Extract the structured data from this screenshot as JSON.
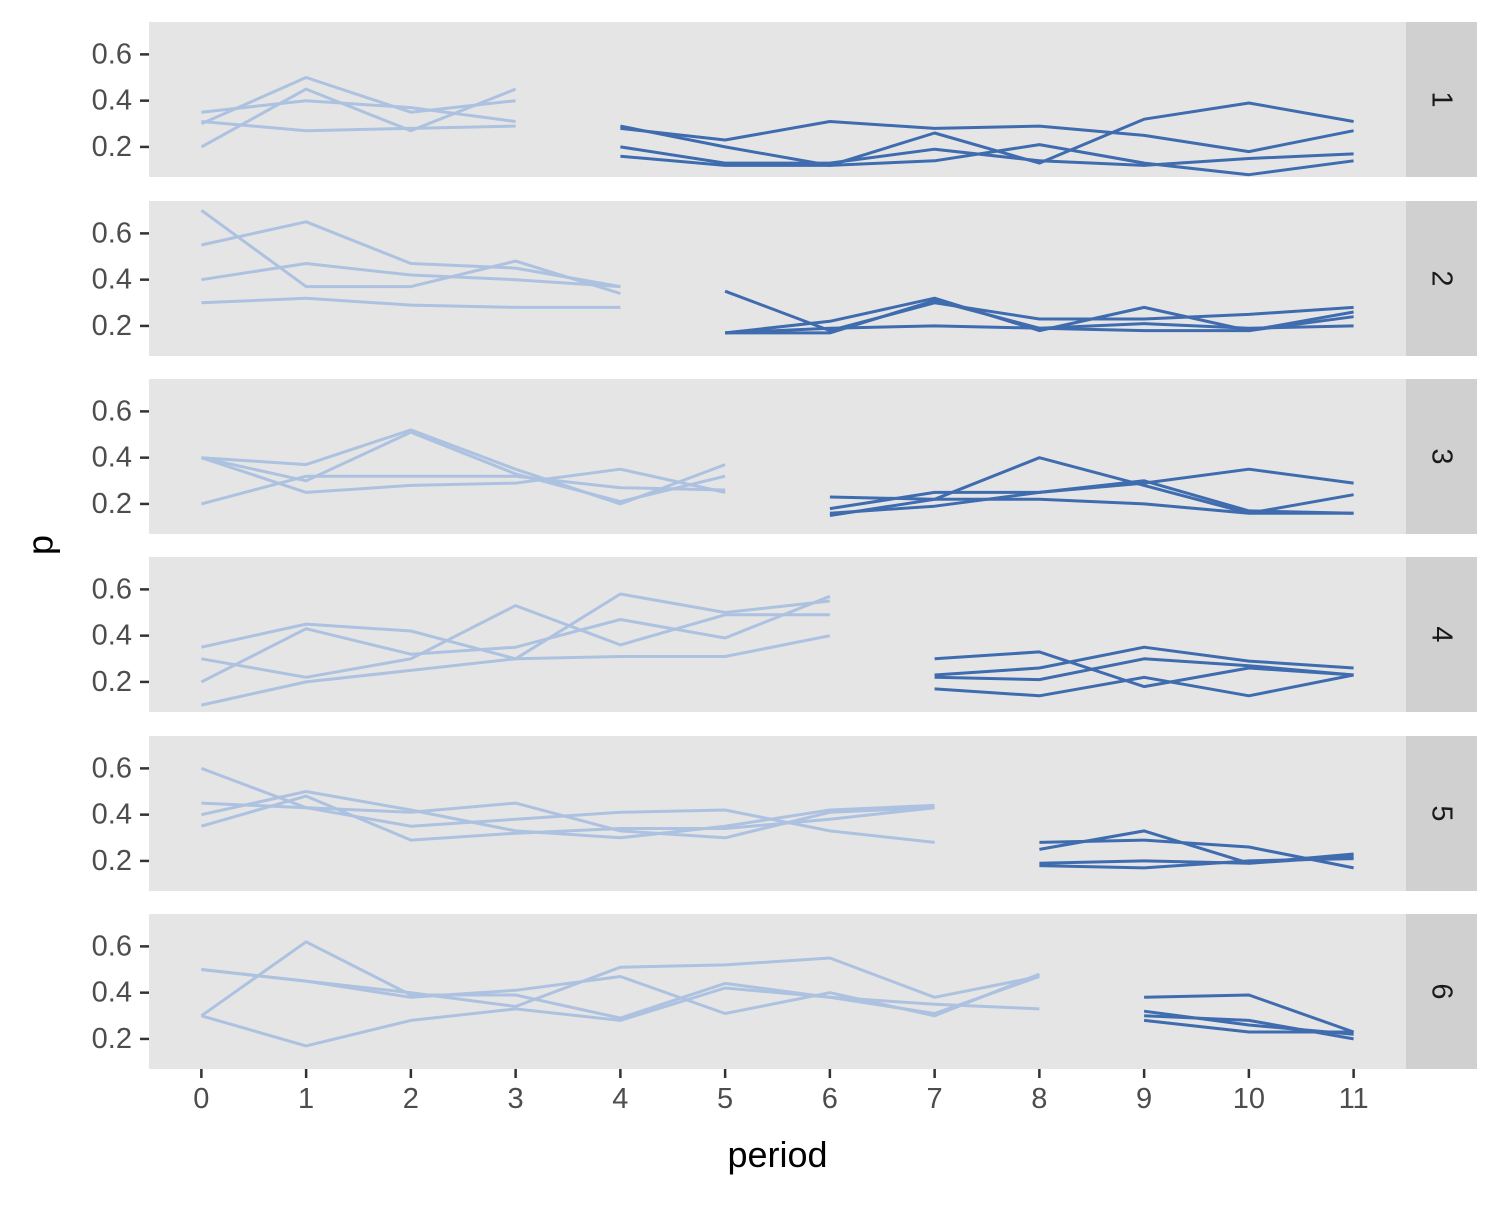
{
  "chart_data": {
    "type": "line",
    "xlabel": "period",
    "ylabel": "p",
    "x_ticks": [
      "0",
      "1",
      "2",
      "3",
      "4",
      "5",
      "6",
      "7",
      "8",
      "9",
      "10",
      "11"
    ],
    "y_ticks": [
      "0.2",
      "0.4",
      "0.6"
    ],
    "xlim": [
      -0.5,
      11.5
    ],
    "ylim": [
      0.07,
      0.74
    ],
    "grid": false,
    "colors": {
      "early": "#adc2e0",
      "late": "#3f6caf",
      "panel_bg": "#e5e5e5",
      "strip_bg": "#d0d0d0"
    },
    "facets": [
      {
        "label": "1",
        "early": [
          {
            "x": [
              0,
              1,
              2,
              3
            ],
            "y": [
              0.2,
              0.45,
              0.27,
              0.45
            ]
          },
          {
            "x": [
              0,
              1,
              2,
              3
            ],
            "y": [
              0.3,
              0.5,
              0.35,
              0.4
            ]
          },
          {
            "x": [
              0,
              1,
              2,
              3
            ],
            "y": [
              0.35,
              0.4,
              0.37,
              0.31
            ]
          },
          {
            "x": [
              0,
              1,
              2,
              3
            ],
            "y": [
              0.31,
              0.27,
              0.28,
              0.29
            ]
          }
        ],
        "late": [
          {
            "x": [
              4,
              5,
              6,
              7,
              8,
              9,
              10,
              11
            ],
            "y": [
              0.28,
              0.23,
              0.31,
              0.28,
              0.29,
              0.25,
              0.18,
              0.27
            ]
          },
          {
            "x": [
              4,
              5,
              6,
              7,
              8,
              9,
              10,
              11
            ],
            "y": [
              0.29,
              0.2,
              0.12,
              0.26,
              0.13,
              0.32,
              0.39,
              0.31
            ]
          },
          {
            "x": [
              4,
              5,
              6,
              7,
              8,
              9,
              10,
              11
            ],
            "y": [
              0.2,
              0.13,
              0.13,
              0.19,
              0.14,
              0.12,
              0.15,
              0.17
            ]
          },
          {
            "x": [
              4,
              5,
              6,
              7,
              8,
              9,
              10,
              11
            ],
            "y": [
              0.16,
              0.12,
              0.12,
              0.14,
              0.21,
              0.13,
              0.08,
              0.14
            ]
          }
        ]
      },
      {
        "label": "2",
        "early": [
          {
            "x": [
              0,
              1,
              2,
              3,
              4
            ],
            "y": [
              0.7,
              0.37,
              0.37,
              0.48,
              0.34
            ]
          },
          {
            "x": [
              0,
              1,
              2,
              3,
              4
            ],
            "y": [
              0.55,
              0.65,
              0.47,
              0.45,
              0.37
            ]
          },
          {
            "x": [
              0,
              1,
              2,
              3,
              4
            ],
            "y": [
              0.4,
              0.47,
              0.42,
              0.4,
              0.37
            ]
          },
          {
            "x": [
              0,
              1,
              2,
              3,
              4
            ],
            "y": [
              0.3,
              0.32,
              0.29,
              0.28,
              0.28
            ]
          }
        ],
        "late": [
          {
            "x": [
              5,
              6,
              7,
              8,
              9,
              10,
              11
            ],
            "y": [
              0.35,
              0.18,
              0.3,
              0.23,
              0.23,
              0.25,
              0.28
            ]
          },
          {
            "x": [
              5,
              6,
              7,
              8,
              9,
              10,
              11
            ],
            "y": [
              0.17,
              0.22,
              0.32,
              0.18,
              0.28,
              0.18,
              0.26
            ]
          },
          {
            "x": [
              5,
              6,
              7,
              8,
              9,
              10,
              11
            ],
            "y": [
              0.17,
              0.17,
              0.31,
              0.19,
              0.18,
              0.18,
              0.24
            ]
          },
          {
            "x": [
              5,
              6,
              7,
              8,
              9,
              10,
              11
            ],
            "y": [
              0.17,
              0.19,
              0.2,
              0.19,
              0.21,
              0.19,
              0.2
            ]
          }
        ]
      },
      {
        "label": "3",
        "early": [
          {
            "x": [
              0,
              1,
              2,
              3,
              4,
              5
            ],
            "y": [
              0.4,
              0.37,
              0.52,
              0.35,
              0.2,
              0.37
            ]
          },
          {
            "x": [
              0,
              1,
              2,
              3,
              4,
              5
            ],
            "y": [
              0.4,
              0.3,
              0.51,
              0.33,
              0.21,
              0.32
            ]
          },
          {
            "x": [
              0,
              1,
              2,
              3,
              4,
              5
            ],
            "y": [
              0.4,
              0.25,
              0.28,
              0.29,
              0.35,
              0.25
            ]
          },
          {
            "x": [
              0,
              1,
              2,
              3,
              4,
              5
            ],
            "y": [
              0.2,
              0.32,
              0.32,
              0.32,
              0.27,
              0.26
            ]
          }
        ],
        "late": [
          {
            "x": [
              6,
              7,
              8,
              9,
              10,
              11
            ],
            "y": [
              0.23,
              0.22,
              0.4,
              0.28,
              0.16,
              0.16
            ]
          },
          {
            "x": [
              6,
              7,
              8,
              9,
              10,
              11
            ],
            "y": [
              0.18,
              0.25,
              0.25,
              0.3,
              0.17,
              0.16
            ]
          },
          {
            "x": [
              6,
              7,
              8,
              9,
              10,
              11
            ],
            "y": [
              0.16,
              0.19,
              0.25,
              0.29,
              0.35,
              0.29
            ]
          },
          {
            "x": [
              6,
              7,
              8,
              9,
              10,
              11
            ],
            "y": [
              0.15,
              0.22,
              0.22,
              0.2,
              0.16,
              0.24
            ]
          }
        ]
      },
      {
        "label": "4",
        "early": [
          {
            "x": [
              0,
              1,
              2,
              3,
              4,
              5,
              6
            ],
            "y": [
              0.35,
              0.45,
              0.42,
              0.3,
              0.58,
              0.5,
              0.55
            ]
          },
          {
            "x": [
              0,
              1,
              2,
              3,
              4,
              5,
              6
            ],
            "y": [
              0.3,
              0.22,
              0.3,
              0.53,
              0.36,
              0.49,
              0.49
            ]
          },
          {
            "x": [
              0,
              1,
              2,
              3,
              4,
              5,
              6
            ],
            "y": [
              0.2,
              0.43,
              0.32,
              0.35,
              0.47,
              0.39,
              0.57
            ]
          },
          {
            "x": [
              0,
              1,
              2,
              3,
              4,
              5,
              6
            ],
            "y": [
              0.1,
              0.2,
              0.25,
              0.3,
              0.31,
              0.31,
              0.4
            ]
          }
        ],
        "late": [
          {
            "x": [
              7,
              8,
              9,
              10,
              11
            ],
            "y": [
              0.3,
              0.33,
              0.18,
              0.26,
              0.23
            ]
          },
          {
            "x": [
              7,
              8,
              9,
              10,
              11
            ],
            "y": [
              0.23,
              0.26,
              0.35,
              0.29,
              0.26
            ]
          },
          {
            "x": [
              7,
              8,
              9,
              10,
              11
            ],
            "y": [
              0.22,
              0.21,
              0.3,
              0.27,
              0.23
            ]
          },
          {
            "x": [
              7,
              8,
              9,
              10,
              11
            ],
            "y": [
              0.17,
              0.14,
              0.22,
              0.14,
              0.23
            ]
          }
        ]
      },
      {
        "label": "5",
        "early": [
          {
            "x": [
              0,
              1,
              2,
              3,
              4,
              5,
              6,
              7
            ],
            "y": [
              0.6,
              0.43,
              0.41,
              0.45,
              0.33,
              0.3,
              0.41,
              0.43
            ]
          },
          {
            "x": [
              0,
              1,
              2,
              3,
              4,
              5,
              6,
              7
            ],
            "y": [
              0.45,
              0.43,
              0.35,
              0.38,
              0.41,
              0.42,
              0.33,
              0.28
            ]
          },
          {
            "x": [
              0,
              1,
              2,
              3,
              4,
              5,
              6,
              7
            ],
            "y": [
              0.4,
              0.5,
              0.42,
              0.33,
              0.3,
              0.35,
              0.42,
              0.44
            ]
          },
          {
            "x": [
              0,
              1,
              2,
              3,
              4,
              5,
              6,
              7
            ],
            "y": [
              0.35,
              0.48,
              0.29,
              0.32,
              0.34,
              0.34,
              0.38,
              0.43
            ]
          }
        ],
        "late": [
          {
            "x": [
              8,
              9,
              10,
              11
            ],
            "y": [
              0.28,
              0.29,
              0.26,
              0.17
            ]
          },
          {
            "x": [
              8,
              9,
              10,
              11
            ],
            "y": [
              0.25,
              0.33,
              0.19,
              0.23
            ]
          },
          {
            "x": [
              8,
              9,
              10,
              11
            ],
            "y": [
              0.19,
              0.2,
              0.19,
              0.22
            ]
          },
          {
            "x": [
              8,
              9,
              10,
              11
            ],
            "y": [
              0.18,
              0.17,
              0.2,
              0.21
            ]
          }
        ]
      },
      {
        "label": "6",
        "early": [
          {
            "x": [
              0,
              1,
              2,
              3,
              4,
              5,
              6,
              7,
              8
            ],
            "y": [
              0.5,
              0.45,
              0.38,
              0.41,
              0.47,
              0.31,
              0.4,
              0.3,
              0.48
            ]
          },
          {
            "x": [
              0,
              1,
              2,
              3,
              4,
              5,
              6,
              7,
              8
            ],
            "y": [
              0.5,
              0.45,
              0.4,
              0.34,
              0.51,
              0.52,
              0.55,
              0.38,
              0.47
            ]
          },
          {
            "x": [
              0,
              1,
              2,
              3,
              4,
              5,
              6,
              7,
              8
            ],
            "y": [
              0.3,
              0.62,
              0.39,
              0.39,
              0.29,
              0.44,
              0.38,
              0.31,
              0.47
            ]
          },
          {
            "x": [
              0,
              1,
              2,
              3,
              4,
              5,
              6,
              7,
              8
            ],
            "y": [
              0.3,
              0.17,
              0.28,
              0.33,
              0.28,
              0.42,
              0.38,
              0.35,
              0.33
            ]
          }
        ],
        "late": [
          {
            "x": [
              9,
              10,
              11
            ],
            "y": [
              0.38,
              0.39,
              0.23
            ]
          },
          {
            "x": [
              9,
              10,
              11
            ],
            "y": [
              0.32,
              0.26,
              0.22
            ]
          },
          {
            "x": [
              9,
              10,
              11
            ],
            "y": [
              0.3,
              0.28,
              0.2
            ]
          },
          {
            "x": [
              9,
              10,
              11
            ],
            "y": [
              0.28,
              0.23,
              0.23
            ]
          }
        ]
      }
    ]
  }
}
